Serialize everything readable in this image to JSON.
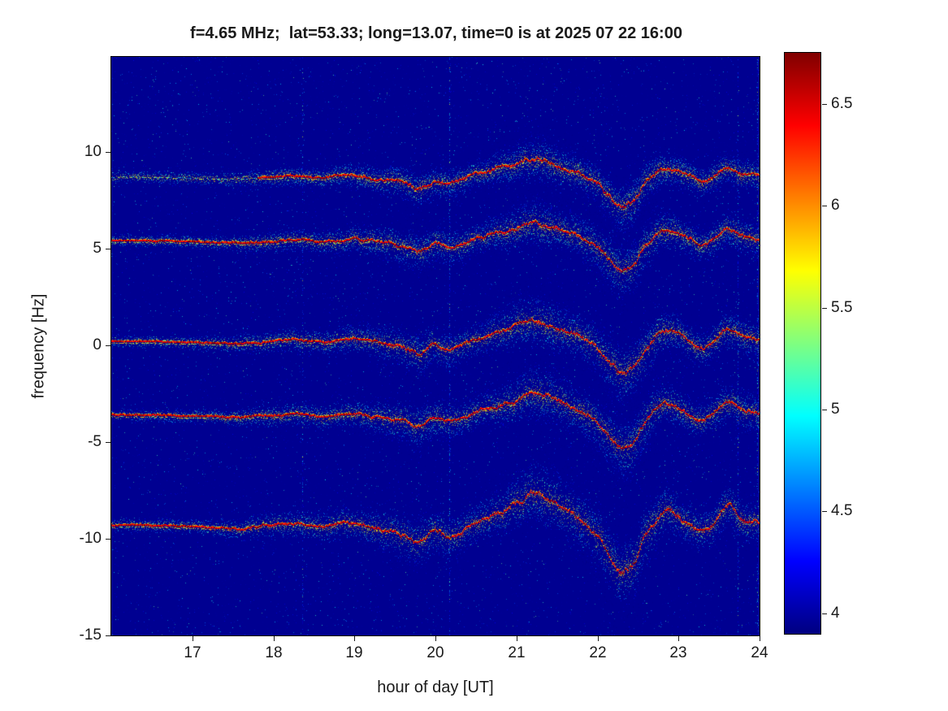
{
  "chart_data": {
    "type": "heatmap",
    "subtype": "doppler-spectrogram",
    "title": "f=4.65 MHz;  lat=53.33; long=13.07, time=0 is at 2025 07 22 16:00",
    "xlabel": "hour of day [UT]",
    "ylabel": "frequency [Hz]",
    "xlim": [
      16,
      24
    ],
    "ylim": [
      -15,
      14.9
    ],
    "x_ticks": [
      17,
      18,
      19,
      20,
      21,
      22,
      23,
      24
    ],
    "y_ticks": [
      10,
      5,
      0,
      -5,
      -10,
      -15
    ],
    "grid": false,
    "colormap": "jet",
    "colorbar": {
      "min": 3.9,
      "max": 6.75,
      "ticks": [
        4,
        4.5,
        5,
        5.5,
        6,
        6.5
      ],
      "position": "right"
    },
    "background_value": 3.95,
    "legend": null,
    "time_points": [
      16,
      16.5,
      17,
      17.5,
      18,
      18.3,
      18.6,
      19,
      19.3,
      19.6,
      19.8,
      20,
      20.2,
      20.5,
      20.8,
      21,
      21.2,
      21.4,
      21.6,
      21.8,
      22,
      22.15,
      22.3,
      22.45,
      22.6,
      22.8,
      23,
      23.15,
      23.3,
      23.45,
      23.6,
      23.8,
      24
    ],
    "traces": [
      {
        "name": "trace-plus9Hz",
        "center": 8.7,
        "scale": 1.0,
        "spread": 0.75,
        "weak_until": 17.8,
        "frequencies": [
          8.7,
          8.7,
          8.65,
          8.6,
          8.7,
          8.75,
          8.65,
          8.8,
          8.6,
          8.4,
          8.15,
          8.55,
          8.4,
          8.8,
          9.15,
          9.4,
          9.7,
          9.5,
          9.2,
          8.85,
          8.4,
          7.7,
          7.2,
          7.5,
          8.4,
          9.2,
          9.0,
          8.7,
          8.45,
          8.8,
          9.25,
          8.9,
          8.8
        ]
      },
      {
        "name": "trace-plus5Hz",
        "center": 5.4,
        "scale": 1.0,
        "spread": 0.85,
        "weak_until": 16,
        "frequencies": [
          5.4,
          5.4,
          5.35,
          5.3,
          5.4,
          5.45,
          5.35,
          5.5,
          5.3,
          5.1,
          4.85,
          5.25,
          5.1,
          5.5,
          5.85,
          6.1,
          6.4,
          6.2,
          5.9,
          5.55,
          5.1,
          4.4,
          3.9,
          4.2,
          5.1,
          5.9,
          5.7,
          5.4,
          5.15,
          5.5,
          5.95,
          5.6,
          5.5
        ]
      },
      {
        "name": "trace-0Hz",
        "center": 0.2,
        "scale": 1.1,
        "spread": 0.95,
        "weak_until": 16,
        "frequencies": [
          0.2,
          0.2,
          0.15,
          0.09,
          0.2,
          0.26,
          0.15,
          0.31,
          0.09,
          -0.13,
          -0.41,
          0.04,
          -0.13,
          0.31,
          0.7,
          0.97,
          1.3,
          1.08,
          0.75,
          0.37,
          -0.13,
          -0.9,
          -1.45,
          -1.12,
          -0.13,
          0.75,
          0.53,
          0.2,
          -0.08,
          0.31,
          0.81,
          0.42,
          0.31
        ]
      },
      {
        "name": "trace-minus4Hz",
        "center": -3.6,
        "scale": 1.1,
        "spread": 0.95,
        "weak_until": 16,
        "frequencies": [
          -3.6,
          -3.6,
          -3.66,
          -3.71,
          -3.6,
          -3.55,
          -3.66,
          -3.49,
          -3.71,
          -3.93,
          -4.21,
          -3.76,
          -3.93,
          -3.49,
          -3.1,
          -2.83,
          -2.5,
          -2.72,
          -3.05,
          -3.42,
          -3.93,
          -4.7,
          -5.25,
          -4.92,
          -3.93,
          -3.05,
          -3.27,
          -3.6,
          -3.88,
          -3.49,
          -2.99,
          -3.38,
          -3.49
        ]
      },
      {
        "name": "trace-minus9Hz",
        "center": -9.3,
        "scale": 1.6,
        "spread": 1.15,
        "weak_until": 16,
        "frequencies": [
          -9.3,
          -9.3,
          -9.38,
          -9.46,
          -9.3,
          -9.22,
          -9.38,
          -9.14,
          -9.46,
          -9.78,
          -10.18,
          -9.54,
          -9.78,
          -9.14,
          -8.58,
          -8.18,
          -7.7,
          -8.02,
          -8.5,
          -9.06,
          -9.78,
          -10.9,
          -11.7,
          -11.22,
          -9.78,
          -8.5,
          -8.82,
          -9.3,
          -9.7,
          -9.14,
          -8.42,
          -8.98,
          -9.14
        ]
      }
    ],
    "activity_time": [
      16,
      17,
      17.5,
      18,
      18.5,
      19,
      19.5,
      19.8,
      20.2,
      20.6,
      21,
      21.3,
      21.7,
      22,
      22.3,
      22.6,
      23,
      23.4,
      23.7,
      24
    ],
    "activity_level": [
      0.2,
      0.25,
      0.35,
      0.55,
      0.6,
      0.75,
      0.95,
      1.1,
      0.9,
      0.85,
      1.25,
      1.45,
      1.2,
      1.3,
      1.6,
      1.35,
      1.0,
      0.9,
      1.05,
      0.95
    ],
    "interference_lines": [
      {
        "hour": 18.36,
        "strength": 0.4
      },
      {
        "hour": 20.17,
        "strength": 0.75
      },
      {
        "hour": 23.73,
        "strength": 0.55
      },
      {
        "hour": 23.97,
        "strength": 0.8
      }
    ]
  }
}
